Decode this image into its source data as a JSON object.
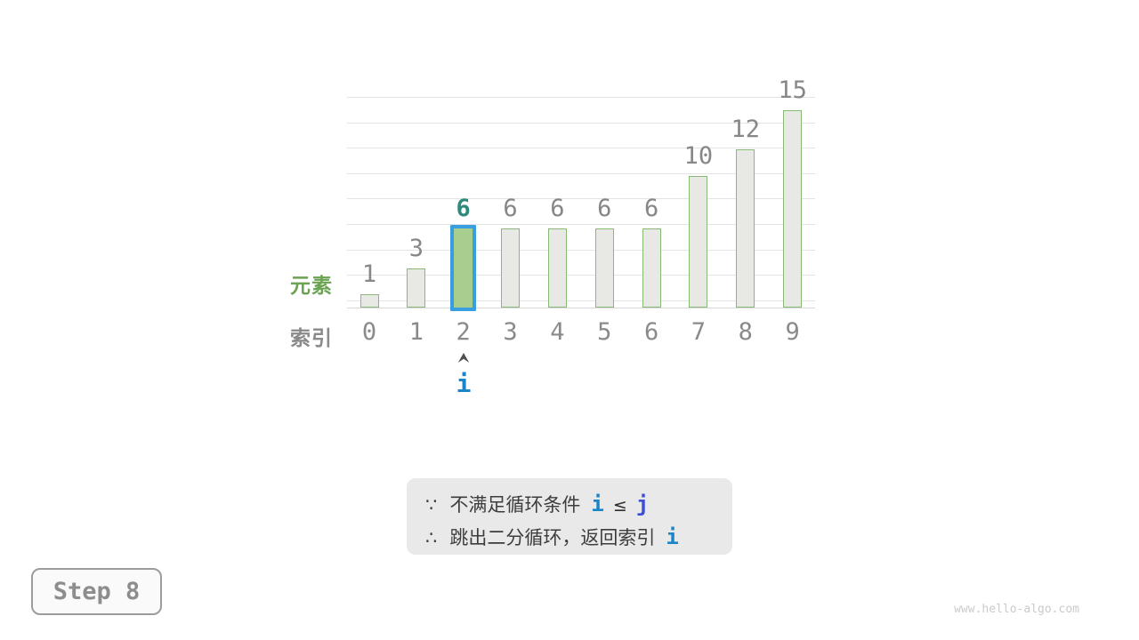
{
  "chart_data": {
    "type": "bar",
    "categories": [
      "0",
      "1",
      "2",
      "3",
      "4",
      "5",
      "6",
      "7",
      "8",
      "9"
    ],
    "values": [
      1,
      3,
      6,
      6,
      6,
      6,
      6,
      10,
      12,
      15
    ],
    "value_labels": [
      "1",
      "3",
      "6",
      "6",
      "6",
      "6",
      "6",
      "10",
      "12",
      "15"
    ],
    "highlight_index": 2,
    "title": "",
    "xlabel": "索引",
    "ylabel": "元素",
    "ylim": [
      0,
      16.5
    ],
    "grid": true,
    "legend_position": "none"
  },
  "pointer": {
    "label": "i",
    "target_index": 2
  },
  "annotation": {
    "line1": {
      "marker": "∵",
      "text": "不满足循环条件",
      "var_i": "i",
      "operator": "≤",
      "var_j": "j"
    },
    "line2": {
      "marker": "∴",
      "text": "跳出二分循环，返回索引",
      "var_i": "i"
    }
  },
  "step_badge": {
    "label": "Step 8"
  },
  "watermark": {
    "text": "www.hello-algo.com"
  },
  "colors": {
    "bar_fill": "#e8e8e5",
    "bar_border": "#87ba77",
    "highlight_fill": "#a7cd8f",
    "highlight_border": "#389ee0",
    "highlight_value_label": "#2e8b7c",
    "gray_text": "#878787",
    "element_label_green": "#6ba353",
    "pointer_blue": "#1b85c9",
    "var_j_indigo": "#3d4edb",
    "annotation_bg": "#e9e9e9",
    "annotation_text": "#3d3d3d",
    "gridline": "#e3e3e3",
    "step_text": "#8d8d8d",
    "watermark": "#cacaca"
  }
}
